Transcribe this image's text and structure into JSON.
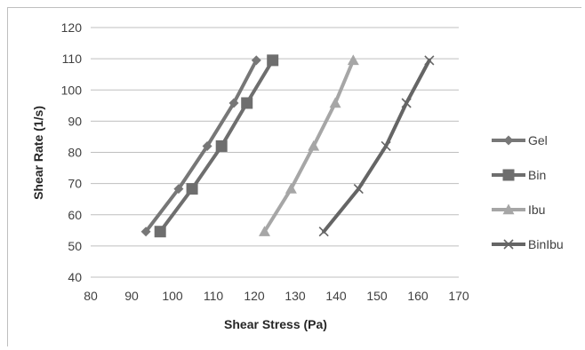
{
  "chart_data": {
    "type": "line",
    "title": "",
    "xlabel": "Shear Stress (Pa)",
    "ylabel": "Shear Rate (1/s)",
    "xlim": [
      80,
      170
    ],
    "ylim": [
      40,
      120
    ],
    "xticks": [
      80,
      90,
      100,
      110,
      120,
      130,
      140,
      150,
      160,
      170
    ],
    "yticks": [
      40,
      50,
      60,
      70,
      80,
      90,
      100,
      110,
      120
    ],
    "grid": "horizontal",
    "legend": "right",
    "series": [
      {
        "name": "Gel",
        "marker": "diamond",
        "color": "#777777",
        "points": [
          [
            93.5,
            54.6
          ],
          [
            101.5,
            68.3
          ],
          [
            108.5,
            82.0
          ],
          [
            115.0,
            95.8
          ],
          [
            120.5,
            109.5
          ]
        ]
      },
      {
        "name": "Bin",
        "marker": "square",
        "color": "#6e6e6e",
        "points": [
          [
            97.0,
            54.6
          ],
          [
            104.8,
            68.3
          ],
          [
            112.0,
            82.0
          ],
          [
            118.2,
            95.8
          ],
          [
            124.5,
            109.5
          ]
        ]
      },
      {
        "name": "Ibu",
        "marker": "triangle",
        "color": "#a6a6a6",
        "points": [
          [
            122.5,
            54.6
          ],
          [
            129.0,
            68.3
          ],
          [
            134.5,
            82.0
          ],
          [
            139.8,
            95.8
          ],
          [
            144.2,
            109.5
          ]
        ]
      },
      {
        "name": "BinIbu",
        "marker": "x",
        "color": "#656565",
        "points": [
          [
            137.0,
            54.6
          ],
          [
            145.5,
            68.3
          ],
          [
            152.2,
            82.0
          ],
          [
            157.2,
            95.8
          ],
          [
            162.8,
            109.5
          ]
        ]
      }
    ]
  }
}
